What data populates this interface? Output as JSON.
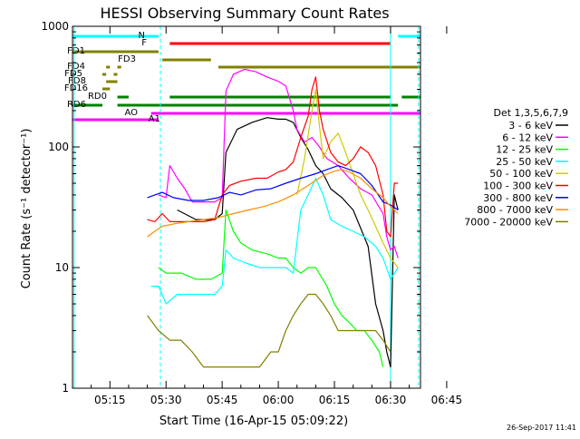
{
  "chart_data": {
    "type": "line",
    "title": "HESSI Observing Summary Count Rates",
    "xlabel": "Start Time (16-Apr-15 05:09:22)",
    "ylabel": "Count Rate (s⁻¹ detector⁻¹)",
    "yscale": "log",
    "ylim": [
      1,
      1000
    ],
    "xlim_minutes": [
      5.0,
      98.0
    ],
    "x_ticks": [
      {
        "label": "05:15",
        "t": 15
      },
      {
        "label": "05:30",
        "t": 30
      },
      {
        "label": "05:45",
        "t": 45
      },
      {
        "label": "06:00",
        "t": 60
      },
      {
        "label": "06:15",
        "t": 75
      },
      {
        "label": "06:30",
        "t": 90
      },
      {
        "label": "06:45",
        "t": 105
      }
    ],
    "y_ticks": [
      {
        "label": "1",
        "v": 1
      },
      {
        "label": "10",
        "v": 10
      },
      {
        "label": "100",
        "v": 100
      },
      {
        "label": "1000",
        "v": 1000
      }
    ],
    "legend_title": "Det 1,3,5,6,7,9",
    "legend_placement": "right",
    "series": [
      {
        "name": "3 - 6 keV",
        "color": "#000000",
        "points": [
          [
            25,
            null
          ],
          [
            33,
            30
          ],
          [
            38,
            25
          ],
          [
            43,
            25
          ],
          [
            45,
            28
          ],
          [
            46,
            90
          ],
          [
            49,
            140
          ],
          [
            53,
            160
          ],
          [
            57,
            175
          ],
          [
            60,
            170
          ],
          [
            62,
            170
          ],
          [
            64,
            160
          ],
          [
            66,
            120
          ],
          [
            68,
            95
          ],
          [
            70,
            70
          ],
          [
            72,
            60
          ],
          [
            74,
            45
          ],
          [
            77,
            38
          ],
          [
            80,
            30
          ],
          [
            84,
            15
          ],
          [
            86,
            5
          ],
          [
            88,
            3
          ],
          [
            89,
            2
          ],
          [
            90,
            1.5
          ],
          [
            91,
            40
          ],
          [
            92,
            30
          ]
        ]
      },
      {
        "name": "6 - 12 keV",
        "color": "#ff00ff",
        "points": [
          [
            25,
            null
          ],
          [
            28,
            40
          ],
          [
            30,
            38
          ],
          [
            31,
            70
          ],
          [
            33,
            55
          ],
          [
            35,
            45
          ],
          [
            37,
            35
          ],
          [
            43,
            35
          ],
          [
            45,
            38
          ],
          [
            46,
            290
          ],
          [
            48,
            400
          ],
          [
            51,
            440
          ],
          [
            54,
            420
          ],
          [
            57,
            380
          ],
          [
            60,
            350
          ],
          [
            62,
            320
          ],
          [
            64,
            200
          ],
          [
            65,
            140
          ],
          [
            67,
            110
          ],
          [
            69,
            120
          ],
          [
            71,
            100
          ],
          [
            73,
            80
          ],
          [
            76,
            70
          ],
          [
            79,
            55
          ],
          [
            82,
            45
          ],
          [
            85,
            40
          ],
          [
            88,
            28
          ],
          [
            89,
            18
          ],
          [
            90,
            14
          ],
          [
            91,
            15
          ],
          [
            92,
            12
          ]
        ]
      },
      {
        "name": "12 - 25 keV",
        "color": "#00ff00",
        "points": [
          [
            25,
            null
          ],
          [
            28,
            10
          ],
          [
            30,
            9
          ],
          [
            34,
            9
          ],
          [
            38,
            8
          ],
          [
            42,
            8
          ],
          [
            45,
            9
          ],
          [
            46,
            30
          ],
          [
            48,
            20
          ],
          [
            50,
            16
          ],
          [
            53,
            14
          ],
          [
            57,
            13
          ],
          [
            60,
            12
          ],
          [
            62,
            12
          ],
          [
            64,
            10
          ],
          [
            66,
            9
          ],
          [
            68,
            10
          ],
          [
            70,
            10
          ],
          [
            73,
            7
          ],
          [
            75,
            5
          ],
          [
            77,
            4
          ],
          [
            79,
            3.5
          ],
          [
            81,
            3
          ],
          [
            83,
            3
          ],
          [
            85,
            2.5
          ],
          [
            87,
            2
          ],
          [
            88,
            1.5
          ]
        ]
      },
      {
        "name": "25 - 50 keV",
        "color": "#00ffff",
        "points": [
          [
            25,
            null
          ],
          [
            26,
            7
          ],
          [
            28,
            7
          ],
          [
            30,
            5
          ],
          [
            33,
            6
          ],
          [
            36,
            6
          ],
          [
            40,
            6
          ],
          [
            43,
            6
          ],
          [
            45,
            7
          ],
          [
            46,
            14
          ],
          [
            48,
            12
          ],
          [
            51,
            11
          ],
          [
            55,
            10
          ],
          [
            59,
            10
          ],
          [
            62,
            10
          ],
          [
            64,
            9
          ],
          [
            66,
            30
          ],
          [
            68,
            40
          ],
          [
            70,
            55
          ],
          [
            72,
            40
          ],
          [
            74,
            25
          ],
          [
            77,
            22
          ],
          [
            80,
            20
          ],
          [
            83,
            18
          ],
          [
            86,
            15
          ],
          [
            88,
            12
          ],
          [
            90,
            8
          ],
          [
            92,
            10
          ]
        ]
      },
      {
        "name": "50 - 100 keV",
        "color": "#cccc00",
        "points": [
          [
            63,
            null
          ],
          [
            65,
            40
          ],
          [
            67,
            80
          ],
          [
            69,
            200
          ],
          [
            70,
            300
          ],
          [
            71,
            150
          ],
          [
            72,
            80
          ],
          [
            74,
            110
          ],
          [
            76,
            130
          ],
          [
            78,
            90
          ],
          [
            80,
            60
          ],
          [
            82,
            40
          ],
          [
            84,
            30
          ],
          [
            86,
            22
          ],
          [
            88,
            16
          ],
          [
            90,
            12
          ],
          [
            92,
            10
          ]
        ]
      },
      {
        "name": "100 - 300 keV",
        "color": "#ff0000",
        "points": [
          [
            25,
            null
          ],
          [
            25,
            25
          ],
          [
            27,
            24
          ],
          [
            29,
            28
          ],
          [
            31,
            24
          ],
          [
            35,
            24
          ],
          [
            40,
            24
          ],
          [
            43,
            25
          ],
          [
            45,
            40
          ],
          [
            47,
            48
          ],
          [
            50,
            52
          ],
          [
            54,
            55
          ],
          [
            57,
            55
          ],
          [
            60,
            62
          ],
          [
            62,
            65
          ],
          [
            64,
            75
          ],
          [
            66,
            120
          ],
          [
            68,
            180
          ],
          [
            69,
            300
          ],
          [
            70,
            380
          ],
          [
            71,
            200
          ],
          [
            72,
            140
          ],
          [
            74,
            90
          ],
          [
            76,
            75
          ],
          [
            78,
            70
          ],
          [
            80,
            80
          ],
          [
            82,
            100
          ],
          [
            84,
            90
          ],
          [
            86,
            70
          ],
          [
            88,
            40
          ],
          [
            89,
            20
          ],
          [
            90,
            18
          ],
          [
            91,
            50
          ],
          [
            92,
            50
          ]
        ]
      },
      {
        "name": "300 - 800 keV",
        "color": "#0000ff",
        "points": [
          [
            25,
            null
          ],
          [
            25,
            38
          ],
          [
            27,
            40
          ],
          [
            29,
            42
          ],
          [
            32,
            38
          ],
          [
            36,
            36
          ],
          [
            40,
            36
          ],
          [
            44,
            38
          ],
          [
            47,
            42
          ],
          [
            50,
            40
          ],
          [
            54,
            44
          ],
          [
            58,
            45
          ],
          [
            62,
            50
          ],
          [
            66,
            55
          ],
          [
            70,
            60
          ],
          [
            73,
            65
          ],
          [
            76,
            70
          ],
          [
            79,
            65
          ],
          [
            82,
            60
          ],
          [
            85,
            48
          ],
          [
            88,
            35
          ],
          [
            90,
            33
          ],
          [
            92,
            30
          ]
        ]
      },
      {
        "name": "800 - 7000 keV",
        "color": "#ff8c00",
        "points": [
          [
            25,
            null
          ],
          [
            25,
            18
          ],
          [
            27,
            20
          ],
          [
            29,
            22
          ],
          [
            32,
            23
          ],
          [
            36,
            24
          ],
          [
            40,
            25
          ],
          [
            44,
            26
          ],
          [
            48,
            28
          ],
          [
            52,
            30
          ],
          [
            56,
            32
          ],
          [
            60,
            35
          ],
          [
            64,
            40
          ],
          [
            68,
            48
          ],
          [
            72,
            58
          ],
          [
            75,
            63
          ],
          [
            77,
            65
          ],
          [
            79,
            62
          ],
          [
            82,
            55
          ],
          [
            85,
            45
          ],
          [
            88,
            38
          ],
          [
            90,
            32
          ],
          [
            92,
            28
          ]
        ]
      },
      {
        "name": "7000 - 20000 keV",
        "color": "#808000",
        "points": [
          [
            25,
            null
          ],
          [
            25,
            4
          ],
          [
            28,
            3
          ],
          [
            31,
            2.5
          ],
          [
            34,
            2.5
          ],
          [
            37,
            2
          ],
          [
            40,
            1.5
          ],
          [
            43,
            1.5
          ],
          [
            46,
            1.5
          ],
          [
            49,
            1.5
          ],
          [
            52,
            1.5
          ],
          [
            55,
            1.5
          ],
          [
            58,
            2
          ],
          [
            60,
            2
          ],
          [
            62,
            3
          ],
          [
            64,
            4
          ],
          [
            66,
            5
          ],
          [
            68,
            6
          ],
          [
            70,
            6
          ],
          [
            72,
            5
          ],
          [
            74,
            4
          ],
          [
            76,
            3
          ],
          [
            78,
            3
          ],
          [
            80,
            3
          ],
          [
            83,
            3
          ],
          [
            86,
            3
          ],
          [
            88,
            2.5
          ],
          [
            90,
            2
          ]
        ]
      }
    ],
    "flag_bars": [
      {
        "label": "N",
        "color": "#00ffff",
        "segments": [
          [
            5,
            28
          ],
          [
            92,
            98
          ]
        ]
      },
      {
        "label": "F",
        "color": "#ff0000",
        "segments": [
          [
            31,
            90
          ]
        ]
      },
      {
        "label": "FD1",
        "color": "#808000",
        "segments": [
          [
            5,
            28
          ]
        ]
      },
      {
        "label": "FD3",
        "color": "#808000",
        "segments": [
          [
            29,
            42
          ]
        ]
      },
      {
        "label": "FD4",
        "color": "#808000",
        "segments": [
          [
            14,
            15
          ],
          [
            17,
            18
          ],
          [
            44,
            98
          ]
        ]
      },
      {
        "label": "FD5",
        "color": "#808000",
        "segments": [
          [
            13,
            14
          ],
          [
            16,
            17
          ]
        ]
      },
      {
        "label": "FD8",
        "color": "#808000",
        "segments": [
          [
            14,
            17
          ]
        ]
      },
      {
        "label": "FD16",
        "color": "#808000",
        "segments": [
          [
            13,
            15
          ]
        ]
      },
      {
        "label": "RD0",
        "color": "#008000",
        "segments": [
          [
            17,
            20
          ],
          [
            31,
            90
          ],
          [
            93,
            98
          ]
        ]
      },
      {
        "label": "RD6",
        "color": "#008000",
        "segments": [
          [
            5,
            13
          ],
          [
            17,
            92
          ]
        ]
      },
      {
        "label": "AO",
        "color": "#ff00ff",
        "segments": [
          [
            26,
            98
          ]
        ]
      },
      {
        "label": "A1",
        "color": "#ff00ff",
        "segments": [
          [
            5,
            28
          ]
        ]
      }
    ],
    "vertical_markers": [
      {
        "t": 5.4,
        "color": "#00ffff",
        "style": "solid"
      },
      {
        "t": 28.5,
        "color": "#00ffff",
        "style": "dashed"
      },
      {
        "t": 90.0,
        "color": "#00ffff",
        "style": "solid"
      },
      {
        "t": 97.5,
        "color": "#00ffff",
        "style": "dashed"
      }
    ]
  },
  "footer": {
    "timestamp": "26-Sep-2017 11:41"
  }
}
